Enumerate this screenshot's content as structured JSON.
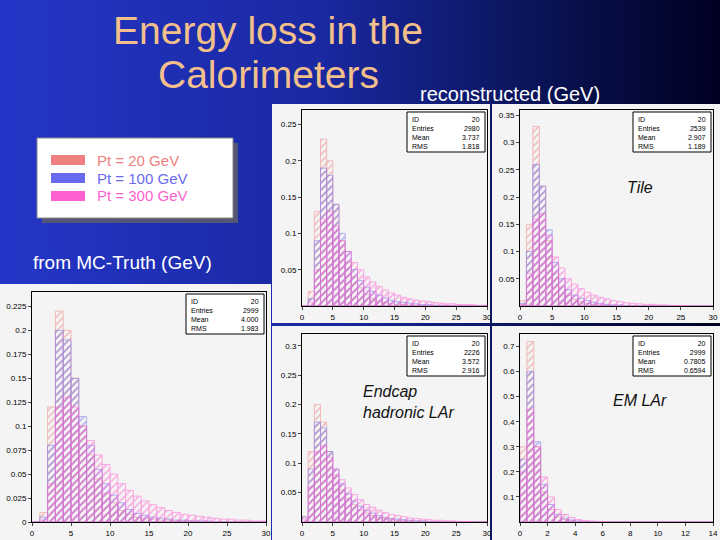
{
  "title": [
    "Energy loss in the",
    "Calorimeters"
  ],
  "subtitle": "reconstructed (GeV)",
  "legend": "upper left",
  "chart_data": [
    {
      "type": "histogram",
      "title": "from MC-Truth (GeV)",
      "bins": [
        0,
        1,
        2,
        3,
        4,
        5,
        6,
        7,
        8,
        9,
        10,
        11,
        12,
        13,
        14,
        15,
        16,
        17,
        18,
        19,
        20,
        21,
        22,
        23,
        24,
        25,
        26,
        27,
        28,
        29,
        30
      ],
      "series": [
        {
          "name": "Pt = 20 GeV",
          "color": "#f08080",
          "values": [
            0,
            0.01,
            0.12,
            0.22,
            0.2,
            0.15,
            0.1,
            0.07,
            0.045,
            0.03,
            0.02,
            0.012,
            0.008,
            0.005,
            0.004,
            0.003,
            0.002,
            0.002,
            0.001,
            0.001,
            0.001,
            0,
            0,
            0,
            0,
            0,
            0,
            0,
            0,
            0
          ]
        },
        {
          "name": "Pt = 100 GeV",
          "color": "#6a6af0",
          "values": [
            0,
            0.005,
            0.08,
            0.2,
            0.19,
            0.15,
            0.11,
            0.08,
            0.055,
            0.04,
            0.028,
            0.02,
            0.013,
            0.009,
            0.007,
            0.005,
            0.004,
            0.003,
            0.002,
            0.002,
            0.001,
            0.001,
            0.001,
            0,
            0,
            0,
            0,
            0,
            0,
            0
          ]
        },
        {
          "name": "Pt = 300 GeV",
          "color": "#ff5fcf",
          "values": [
            0,
            0.002,
            0.04,
            0.12,
            0.13,
            0.12,
            0.1,
            0.085,
            0.07,
            0.06,
            0.05,
            0.04,
            0.033,
            0.027,
            0.022,
            0.018,
            0.015,
            0.012,
            0.01,
            0.008,
            0.007,
            0.006,
            0.005,
            0.004,
            0.003,
            0.003,
            0.002,
            0.002,
            0.001,
            0.001
          ]
        }
      ],
      "xlim": [
        0,
        30
      ],
      "xticks": [
        0,
        5,
        10,
        15,
        20,
        25,
        30
      ],
      "ylim": [
        0,
        0.24
      ],
      "yticks": [
        0,
        0.025,
        0.05,
        0.075,
        0.1,
        0.125,
        0.15,
        0.175,
        0.2,
        0.225
      ],
      "grid": false,
      "stats": [
        [
          "ID",
          "20"
        ],
        [
          "Entries",
          "2999"
        ],
        [
          "Mean",
          "4.000"
        ],
        [
          "RMS",
          "1.983"
        ]
      ]
    },
    {
      "type": "histogram",
      "bins": [
        0,
        1,
        2,
        3,
        4,
        5,
        6,
        7,
        8,
        9,
        10,
        11,
        12,
        13,
        14,
        15,
        16,
        17,
        18,
        19,
        20,
        21,
        22,
        23,
        24,
        25,
        26,
        27,
        28,
        29,
        30
      ],
      "series": [
        {
          "name": "Pt = 20 GeV",
          "color": "#f08080",
          "values": [
            0,
            0.02,
            0.13,
            0.23,
            0.2,
            0.14,
            0.09,
            0.06,
            0.04,
            0.025,
            0.016,
            0.01,
            0.007,
            0.005,
            0.003,
            0.002,
            0.002,
            0.001,
            0.001,
            0.001,
            0,
            0,
            0,
            0,
            0,
            0,
            0,
            0,
            0,
            0
          ]
        },
        {
          "name": "Pt = 100 GeV",
          "color": "#6a6af0",
          "values": [
            0,
            0.01,
            0.09,
            0.19,
            0.18,
            0.14,
            0.1,
            0.075,
            0.05,
            0.035,
            0.026,
            0.02,
            0.015,
            0.011,
            0.008,
            0.006,
            0.005,
            0.004,
            0.003,
            0.002,
            0.002,
            0.001,
            0.001,
            0.001,
            0,
            0,
            0,
            0,
            0,
            0
          ]
        },
        {
          "name": "Pt = 300 GeV",
          "color": "#ff5fcf",
          "values": [
            0,
            0.005,
            0.05,
            0.12,
            0.13,
            0.11,
            0.09,
            0.075,
            0.06,
            0.05,
            0.04,
            0.033,
            0.027,
            0.022,
            0.018,
            0.015,
            0.012,
            0.01,
            0.008,
            0.007,
            0.006,
            0.005,
            0.004,
            0.003,
            0.003,
            0.002,
            0.002,
            0.002,
            0.001,
            0.001
          ]
        }
      ],
      "xlim": [
        0,
        30
      ],
      "xticks": [
        0,
        5,
        10,
        15,
        20,
        25,
        30
      ],
      "ylim": [
        0,
        0.27
      ],
      "yticks": [
        0.05,
        0.1,
        0.15,
        0.2,
        0.25
      ],
      "grid": false,
      "stats": [
        [
          "ID",
          "20"
        ],
        [
          "Entries",
          "2980"
        ],
        [
          "Mean",
          "3.737"
        ],
        [
          "RMS",
          "1.818"
        ]
      ]
    },
    {
      "type": "histogram",
      "label": [
        "Tile"
      ],
      "bins": [
        0,
        1,
        2,
        3,
        4,
        5,
        6,
        7,
        8,
        9,
        10,
        11,
        12,
        13,
        14,
        15,
        16,
        17,
        18,
        19,
        20,
        21,
        22,
        23,
        24,
        25,
        26,
        27,
        28,
        29,
        30
      ],
      "series": [
        {
          "name": "Pt = 20 GeV",
          "color": "#f08080",
          "values": [
            0.01,
            0.15,
            0.33,
            0.22,
            0.12,
            0.06,
            0.035,
            0.02,
            0.012,
            0.008,
            0.005,
            0.003,
            0.002,
            0.001,
            0.001,
            0,
            0,
            0,
            0,
            0,
            0,
            0,
            0,
            0,
            0,
            0,
            0,
            0,
            0,
            0
          ]
        },
        {
          "name": "Pt = 100 GeV",
          "color": "#6a6af0",
          "values": [
            0.005,
            0.1,
            0.26,
            0.22,
            0.14,
            0.08,
            0.05,
            0.03,
            0.02,
            0.014,
            0.01,
            0.007,
            0.005,
            0.003,
            0.002,
            0.002,
            0.001,
            0.001,
            0,
            0,
            0,
            0,
            0,
            0,
            0,
            0,
            0,
            0,
            0,
            0
          ]
        },
        {
          "name": "Pt = 300 GeV",
          "color": "#ff5fcf",
          "values": [
            0.003,
            0.06,
            0.16,
            0.17,
            0.13,
            0.09,
            0.07,
            0.05,
            0.04,
            0.032,
            0.025,
            0.02,
            0.016,
            0.013,
            0.01,
            0.008,
            0.006,
            0.005,
            0.004,
            0.003,
            0.003,
            0.002,
            0.002,
            0.001,
            0.001,
            0.001,
            0,
            0,
            0,
            0
          ]
        }
      ],
      "xlim": [
        0,
        30
      ],
      "xticks": [
        0,
        5,
        10,
        15,
        20,
        25,
        30
      ],
      "ylim": [
        0,
        0.36
      ],
      "yticks": [
        0.05,
        0.1,
        0.15,
        0.2,
        0.25,
        0.3,
        0.35
      ],
      "grid": false,
      "stats": [
        [
          "ID",
          "20"
        ],
        [
          "Entries",
          "2539"
        ],
        [
          "Mean",
          "2.907"
        ],
        [
          "RMS",
          "1.189"
        ]
      ]
    },
    {
      "type": "histogram",
      "label": [
        "Endcap",
        "hadronic LAr"
      ],
      "bins": [
        0,
        1,
        2,
        3,
        4,
        5,
        6,
        7,
        8,
        9,
        10,
        11,
        12,
        13,
        14,
        15,
        16,
        17,
        18,
        19,
        20,
        21,
        22,
        23,
        24,
        25,
        26,
        27,
        28,
        29,
        30
      ],
      "series": [
        {
          "name": "Pt = 20 GeV",
          "color": "#f08080",
          "values": [
            0.01,
            0.12,
            0.2,
            0.17,
            0.12,
            0.08,
            0.055,
            0.04,
            0.03,
            0.02,
            0.015,
            0.011,
            0.008,
            0.006,
            0.004,
            0.003,
            0.002,
            0.002,
            0.001,
            0.001,
            0,
            0,
            0,
            0,
            0,
            0,
            0,
            0,
            0,
            0
          ]
        },
        {
          "name": "Pt = 100 GeV",
          "color": "#6a6af0",
          "values": [
            0.008,
            0.09,
            0.17,
            0.16,
            0.12,
            0.09,
            0.065,
            0.048,
            0.036,
            0.027,
            0.02,
            0.015,
            0.011,
            0.008,
            0.006,
            0.005,
            0.004,
            0.003,
            0.002,
            0.002,
            0.001,
            0.001,
            0,
            0,
            0,
            0,
            0,
            0,
            0,
            0
          ]
        },
        {
          "name": "Pt = 300 GeV",
          "color": "#ff5fcf",
          "values": [
            0.005,
            0.06,
            0.12,
            0.13,
            0.11,
            0.09,
            0.072,
            0.058,
            0.047,
            0.038,
            0.03,
            0.025,
            0.02,
            0.016,
            0.013,
            0.011,
            0.009,
            0.007,
            0.006,
            0.005,
            0.004,
            0.003,
            0.003,
            0.002,
            0.002,
            0.001,
            0.001,
            0.001,
            0,
            0
          ]
        }
      ],
      "xlim": [
        0,
        30
      ],
      "xticks": [
        0,
        5,
        10,
        15,
        20,
        25,
        30
      ],
      "ylim": [
        0,
        0.32
      ],
      "yticks": [
        0.05,
        0.1,
        0.15,
        0.2,
        0.25,
        0.3
      ],
      "grid": false,
      "stats": [
        [
          "ID",
          "20"
        ],
        [
          "Entries",
          "2226"
        ],
        [
          "Mean",
          "3.572"
        ],
        [
          "RMS",
          "2.916"
        ]
      ]
    },
    {
      "type": "histogram",
      "label": [
        "EM LAr"
      ],
      "bins": [
        0,
        0.5,
        1,
        1.5,
        2,
        2.5,
        3,
        3.5,
        4,
        4.5,
        5,
        5.5,
        6,
        6.5,
        7,
        7.5,
        8,
        8.5,
        9,
        9.5,
        10,
        10.5,
        11,
        11.5,
        12,
        12.5,
        13,
        13.5,
        14
      ],
      "series": [
        {
          "name": "Pt = 20 GeV",
          "color": "#f08080",
          "values": [
            0.3,
            0.72,
            0.3,
            0.12,
            0.05,
            0.02,
            0.01,
            0.005,
            0.003,
            0.001,
            0,
            0,
            0,
            0,
            0,
            0,
            0,
            0,
            0,
            0,
            0,
            0,
            0,
            0,
            0,
            0,
            0,
            0
          ]
        },
        {
          "name": "Pt = 100 GeV",
          "color": "#6a6af0",
          "values": [
            0.25,
            0.6,
            0.32,
            0.15,
            0.07,
            0.03,
            0.015,
            0.008,
            0.004,
            0.002,
            0.001,
            0,
            0,
            0,
            0,
            0,
            0,
            0,
            0,
            0,
            0,
            0,
            0,
            0,
            0,
            0,
            0,
            0
          ]
        },
        {
          "name": "Pt = 300 GeV",
          "color": "#ff5fcf",
          "values": [
            0.2,
            0.45,
            0.3,
            0.18,
            0.1,
            0.05,
            0.03,
            0.018,
            0.01,
            0.006,
            0.004,
            0.002,
            0.001,
            0,
            0,
            0,
            0,
            0,
            0,
            0,
            0,
            0,
            0,
            0,
            0,
            0,
            0,
            0
          ]
        }
      ],
      "xlim": [
        0,
        14
      ],
      "xticks": [
        0,
        2,
        4,
        6,
        8,
        10,
        12,
        14
      ],
      "ylim": [
        0,
        0.75
      ],
      "yticks": [
        0.1,
        0.2,
        0.3,
        0.4,
        0.5,
        0.6,
        0.7
      ],
      "grid": false,
      "stats": [
        [
          "ID",
          "20"
        ],
        [
          "Entries",
          "2999"
        ],
        [
          "Mean",
          "0.7805"
        ],
        [
          "RMS",
          "0.6594"
        ]
      ]
    }
  ]
}
